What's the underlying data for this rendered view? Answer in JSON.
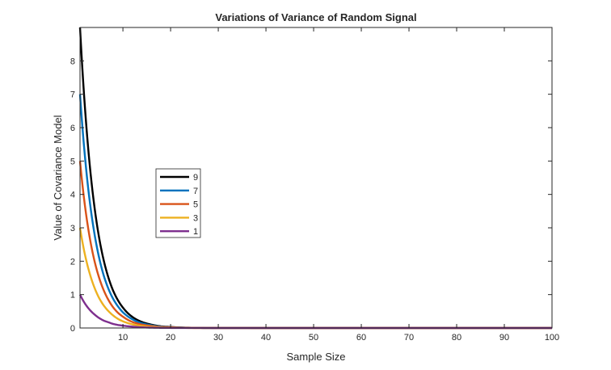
{
  "chart_data": {
    "type": "line",
    "title": "Variations of Variance of Random Signal",
    "xlabel": "Sample Size",
    "ylabel": "Value of Covariance Model",
    "xlim": [
      1,
      100
    ],
    "ylim": [
      0,
      9
    ],
    "xticks": [
      10,
      20,
      30,
      40,
      50,
      60,
      70,
      80,
      90,
      100
    ],
    "yticks": [
      0,
      1,
      2,
      3,
      4,
      5,
      6,
      7,
      8
    ],
    "grid": false,
    "legend_position": "left-middle",
    "x": [
      1,
      2,
      3,
      4,
      5,
      6,
      7,
      8,
      9,
      10,
      12,
      14,
      16,
      18,
      20,
      25,
      30,
      40,
      50,
      60,
      70,
      80,
      90,
      100
    ],
    "series": [
      {
        "name": "9",
        "color": "#000000",
        "values": [
          9.0,
          6.67,
          4.94,
          3.66,
          2.71,
          2.01,
          1.49,
          1.1,
          0.82,
          0.61,
          0.33,
          0.18,
          0.1,
          0.05,
          0.03,
          0.006,
          0.001,
          0.0,
          0.0,
          0.0,
          0.0,
          0.0,
          0.0,
          0.0
        ]
      },
      {
        "name": "7",
        "color": "#0072BD",
        "values": [
          7.0,
          5.19,
          3.84,
          2.85,
          2.11,
          1.56,
          1.16,
          0.86,
          0.64,
          0.47,
          0.26,
          0.14,
          0.08,
          0.04,
          0.02,
          0.005,
          0.001,
          0.0,
          0.0,
          0.0,
          0.0,
          0.0,
          0.0,
          0.0
        ]
      },
      {
        "name": "5",
        "color": "#D95319",
        "values": [
          5.0,
          3.7,
          2.74,
          2.03,
          1.51,
          1.12,
          0.83,
          0.61,
          0.45,
          0.34,
          0.18,
          0.1,
          0.06,
          0.03,
          0.02,
          0.003,
          0.001,
          0.0,
          0.0,
          0.0,
          0.0,
          0.0,
          0.0,
          0.0
        ]
      },
      {
        "name": "3",
        "color": "#EDB120",
        "values": [
          3.0,
          2.22,
          1.65,
          1.22,
          0.9,
          0.67,
          0.5,
          0.37,
          0.27,
          0.2,
          0.11,
          0.06,
          0.03,
          0.02,
          0.01,
          0.002,
          0.0,
          0.0,
          0.0,
          0.0,
          0.0,
          0.0,
          0.0,
          0.0
        ]
      },
      {
        "name": "1",
        "color": "#7E2F8E",
        "values": [
          1.0,
          0.74,
          0.55,
          0.41,
          0.3,
          0.22,
          0.17,
          0.12,
          0.09,
          0.07,
          0.04,
          0.02,
          0.01,
          0.006,
          0.003,
          0.001,
          0.0,
          0.0,
          0.0,
          0.0,
          0.0,
          0.0,
          0.0,
          0.0
        ]
      }
    ]
  }
}
